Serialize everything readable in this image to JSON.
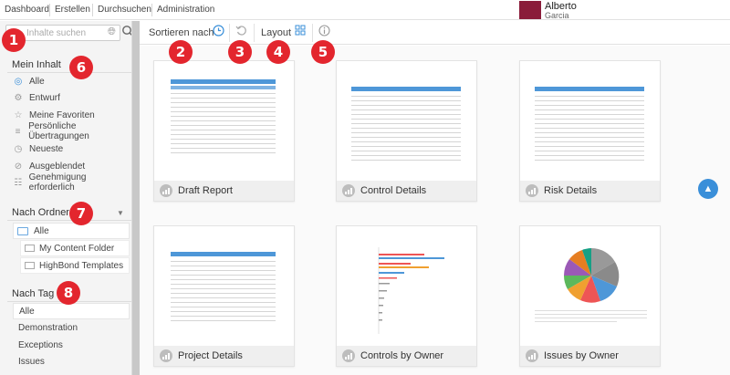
{
  "topnav": {
    "items": [
      "Dashboard",
      "Erstellen",
      "Durchsuchen",
      "Administration"
    ],
    "user": {
      "first": "Alberto",
      "last": "Garcia"
    }
  },
  "sidebar": {
    "search_placeholder": "Inhalte suchen",
    "my_content": {
      "heading": "Mein Inhalt",
      "items": [
        {
          "label": "Alle",
          "icon": "globe-icon"
        },
        {
          "label": "Entwurf",
          "icon": "draft-icon"
        },
        {
          "label": "Meine Favoriten",
          "icon": "star-icon"
        },
        {
          "label": "Persönliche Übertragungen",
          "icon": "rss-icon"
        },
        {
          "label": "Neueste",
          "icon": "clock-icon"
        },
        {
          "label": "Ausgeblendet",
          "icon": "hidden-icon"
        },
        {
          "label": "Genehmigung erforderlich",
          "icon": "approval-icon"
        }
      ]
    },
    "by_folder": {
      "heading": "Nach Ordner",
      "root": "Alle",
      "folders": [
        "My Content Folder",
        "HighBond Templates"
      ]
    },
    "by_tag": {
      "heading": "Nach Tag",
      "tags": [
        "Alle",
        "Demonstration",
        "Exceptions",
        "Issues"
      ]
    }
  },
  "toolbar": {
    "sort_label": "Sortieren nach",
    "layout_label": "Layout"
  },
  "cards": [
    {
      "title": "Draft Report"
    },
    {
      "title": "Control Details"
    },
    {
      "title": "Risk Details"
    },
    {
      "title": "Project Details"
    },
    {
      "title": "Controls by Owner"
    },
    {
      "title": "Issues by Owner"
    }
  ],
  "badges": [
    "1",
    "2",
    "3",
    "4",
    "5",
    "6",
    "7",
    "8"
  ],
  "colors": {
    "accent": "#3a8fd9",
    "badge": "#e3262e",
    "avatar": "#8a1c3a"
  }
}
